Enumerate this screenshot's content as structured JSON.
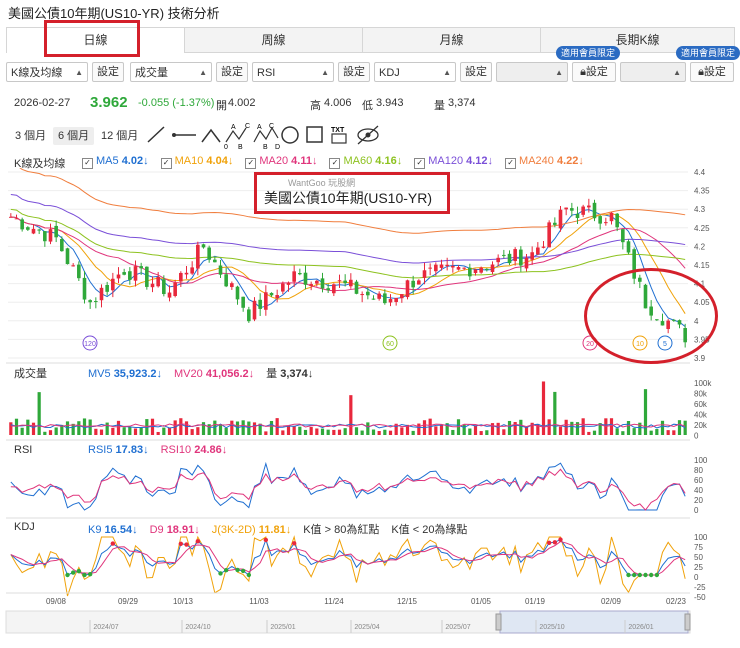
{
  "page": {
    "title": "美國公債10年期(US10-YR) 技術分析",
    "tabs": [
      {
        "label": "日線",
        "active": true
      },
      {
        "label": "周線",
        "active": false
      },
      {
        "label": "月線",
        "active": false
      },
      {
        "label": "長期K線",
        "active": false
      }
    ]
  },
  "controls": {
    "selects": [
      "K線及均線",
      "成交量",
      "RSI",
      "KDJ",
      "",
      ""
    ],
    "setting_label": "設定",
    "vip_badge": "適用會員限定"
  },
  "quote": {
    "date": "2026-02-27",
    "close": "3.962",
    "change": "-0.055 (-1.37%)",
    "open_label": "開",
    "open": "4.002",
    "high_label": "高",
    "high": "4.006",
    "low_label": "低",
    "low": "3.943",
    "vol_label": "量",
    "vol": "3,374"
  },
  "ranges": [
    {
      "label": "3 個月",
      "active": false
    },
    {
      "label": "6 個月",
      "active": true
    },
    {
      "label": "12 個月",
      "active": false
    }
  ],
  "drawing_tools": [
    "line-tool-icon",
    "ray-tool-icon",
    "angle-tool-icon",
    "abc-tool-icon",
    "abcd-tool-icon",
    "circle-tool-icon",
    "rect-tool-icon",
    "text-tool-icon",
    "hide-tool-icon"
  ],
  "drawing_text": {
    "txt": "TXT",
    "a": "A",
    "b": "B",
    "c": "C",
    "d": "D",
    "zero": "0"
  },
  "main_legend": {
    "title": "K線及均線",
    "items": [
      {
        "label": "MA5",
        "value": "4.02",
        "color": "#1f6fd1"
      },
      {
        "label": "MA10",
        "value": "4.04",
        "color": "#f0a20a"
      },
      {
        "label": "MA20",
        "value": "4.11",
        "color": "#e0357c"
      },
      {
        "label": "MA60",
        "value": "4.16",
        "color": "#8dc21f"
      },
      {
        "label": "MA120",
        "value": "4.12",
        "color": "#7a4fd8"
      },
      {
        "label": "MA240",
        "value": "4.22",
        "color": "#f07e3e"
      }
    ]
  },
  "watermark": {
    "brand": "WantGoo 玩股網",
    "name": "美國公債10年期(US10-YR)"
  },
  "main_axis": [
    "4.4",
    "4.35",
    "4.3",
    "4.25",
    "4.2",
    "4.15",
    "4.1",
    "4.05",
    "4",
    "3.95",
    "3.9"
  ],
  "markers": [
    "120",
    "60",
    "20",
    "10",
    "5"
  ],
  "volume_legend": {
    "title": "成交量",
    "items": [
      {
        "label": "MV5",
        "value": "35,923.2",
        "color": "#1f6fd1"
      },
      {
        "label": "MV20",
        "value": "41,056.2",
        "color": "#e0357c"
      },
      {
        "label": "量",
        "value": "3,374",
        "color": "#333333"
      }
    ]
  },
  "volume_axis": [
    "100k",
    "80k",
    "60k",
    "40k",
    "20k",
    "0"
  ],
  "rsi_legend": {
    "title": "RSI",
    "items": [
      {
        "label": "RSI5",
        "value": "17.83",
        "color": "#1f6fd1"
      },
      {
        "label": "RSI10",
        "value": "24.86",
        "color": "#e0357c"
      }
    ]
  },
  "rsi_axis": [
    "100",
    "80",
    "60",
    "40",
    "20",
    "0"
  ],
  "kdj_legend": {
    "title": "KDJ",
    "items": [
      {
        "label": "K9",
        "value": "16.54",
        "color": "#1f6fd1"
      },
      {
        "label": "D9",
        "value": "18.91",
        "color": "#e0357c"
      },
      {
        "label": "J(3K-2D)",
        "value": "11.81",
        "color": "#f0a20a"
      }
    ],
    "notes": [
      "K值 > 80為紅點",
      "K值 < 20為綠點"
    ]
  },
  "kdj_axis": [
    "100",
    "75",
    "50",
    "25",
    "0",
    "-25",
    "-50"
  ],
  "arrow_down": "↓",
  "x_dates": [
    "09/08",
    "09/29",
    "10/13",
    "11/03",
    "11/24",
    "12/15",
    "01/05",
    "01/19",
    "02/09",
    "02/23"
  ],
  "nav_dates": [
    "2024/07",
    "2024/10",
    "2025/01",
    "2025/04",
    "2025/07",
    "2025/10",
    "2026/01"
  ],
  "colors": {
    "up": "#e8283c",
    "down": "#2fa83a",
    "highlight": "#d4202b"
  }
}
